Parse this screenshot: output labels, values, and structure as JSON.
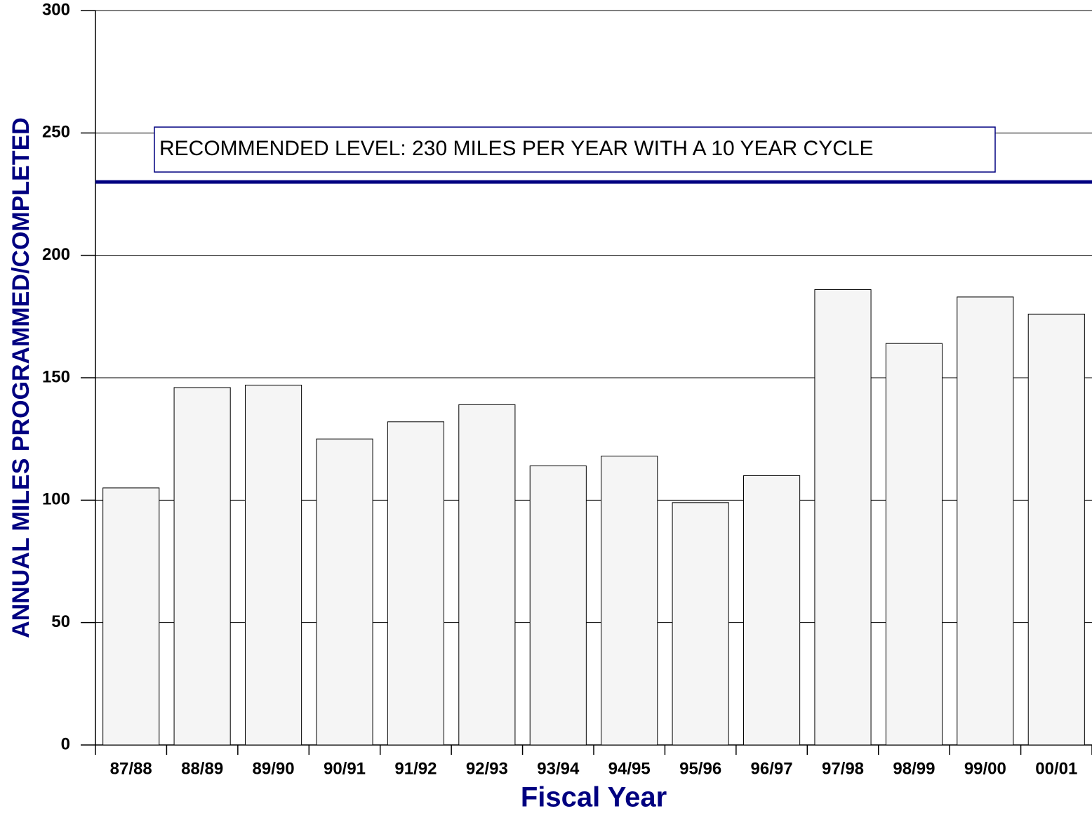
{
  "chart_data": {
    "type": "bar",
    "x_label": "Fiscal Year",
    "y_label": "ANNUAL MILES PROGRAMMED/COMPLETED",
    "annotation": "RECOMMENDED LEVEL: 230 MILES PER YEAR WITH A 10 YEAR CYCLE",
    "reference_value": 230,
    "reference_color": "#000080",
    "categories": [
      "87/88",
      "88/89",
      "89/90",
      "90/91",
      "91/92",
      "92/93",
      "93/94",
      "94/95",
      "95/96",
      "96/97",
      "97/98",
      "98/99",
      "99/00",
      "00/01"
    ],
    "values": [
      105,
      146,
      147,
      125,
      132,
      139,
      114,
      118,
      99,
      110,
      186,
      164,
      183,
      176
    ],
    "color": "#f5f5f5",
    "ylim": [
      0,
      300
    ],
    "yticks": [
      0,
      50,
      100,
      150,
      200,
      250,
      300
    ],
    "grid": true
  }
}
